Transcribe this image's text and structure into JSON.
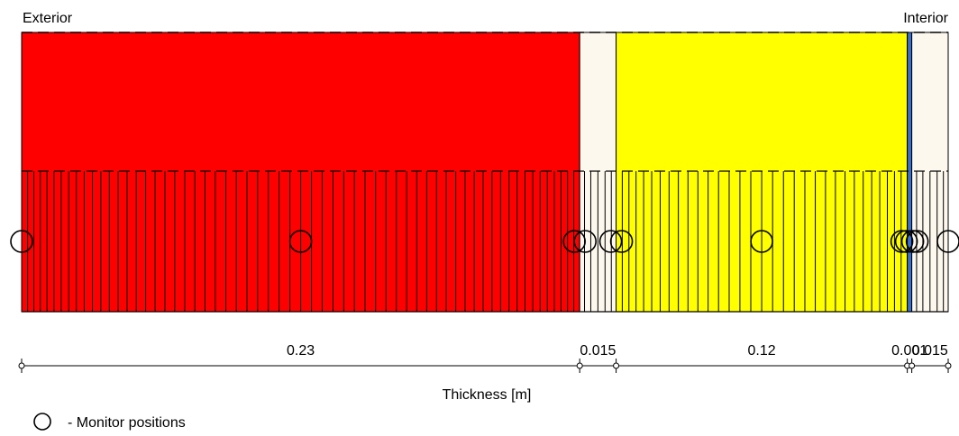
{
  "labels": {
    "exterior": "Exterior",
    "interior": "Interior",
    "axis_title": "Thickness [m]",
    "legend": "- Monitor positions"
  },
  "colors": {
    "brick": "#ff0000",
    "plaster": "#fdf8ee",
    "insulation": "#ffff00",
    "membrane": "#3a6fd0",
    "background": "#ffffff",
    "stroke": "#000000"
  },
  "layers": [
    {
      "thickness_label": "0.23",
      "thickness": 0.23,
      "color": "brick"
    },
    {
      "thickness_label": "0.015",
      "thickness": 0.015,
      "color": "plaster"
    },
    {
      "thickness_label": "0.12",
      "thickness": 0.12,
      "color": "insulation"
    },
    {
      "thickness_label": "0.001",
      "thickness": 0.001,
      "color": "membrane"
    },
    {
      "thickness_label": "0.015",
      "thickness": 0.015,
      "color": "plaster"
    }
  ]
}
